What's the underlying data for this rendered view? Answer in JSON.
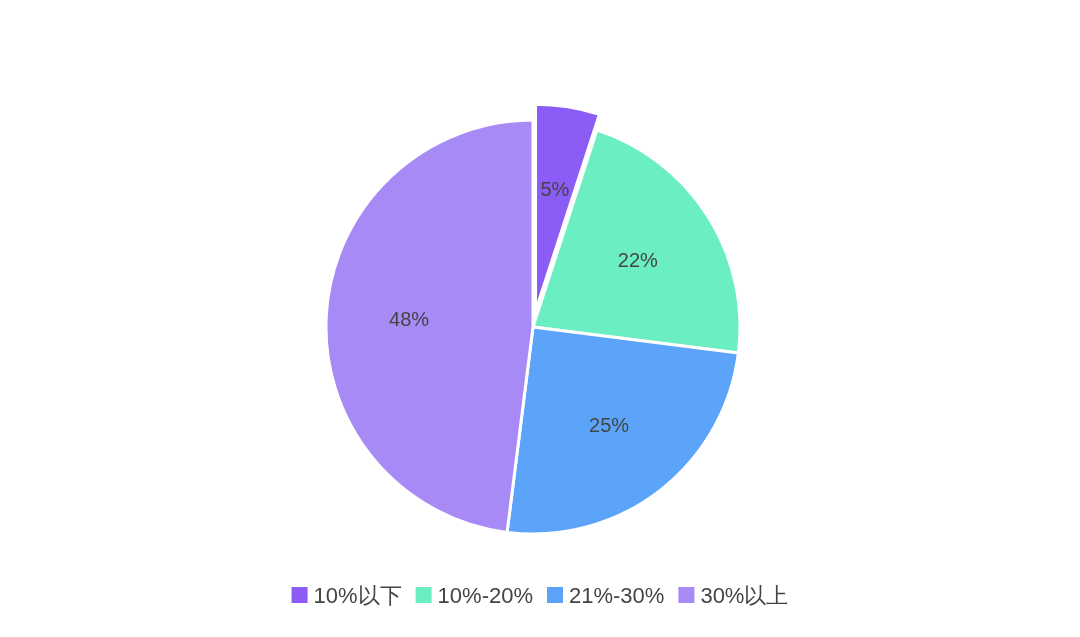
{
  "chart_data": {
    "type": "pie",
    "categories": [
      "10%以下",
      "10%-20%",
      "21%-30%",
      "30%以上"
    ],
    "values": [
      5,
      22,
      25,
      48
    ],
    "colors": [
      "#8b5cf6",
      "#6ceec3",
      "#5ba4f9",
      "#a88af6"
    ],
    "value_labels": [
      "5%",
      "22%",
      "25%",
      "48%"
    ],
    "legend": "bottom"
  }
}
